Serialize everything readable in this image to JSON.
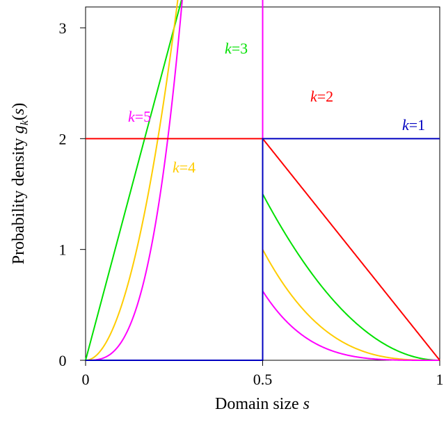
{
  "chart_data": {
    "type": "line",
    "xlabel": "Domain size",
    "xlabel_var": "s",
    "ylabel": "Probability density",
    "ylabel_fn": "g",
    "ylabel_sub": "k",
    "ylabel_open": "(",
    "ylabel_var": "s",
    "ylabel_close": ")",
    "xlim": [
      0,
      1
    ],
    "ylim": [
      0,
      3
    ],
    "x_ticks": [
      0,
      0.5,
      1
    ],
    "x_tick_labels": [
      "0",
      "0.5",
      "1"
    ],
    "y_ticks": [
      0,
      1,
      2,
      3
    ],
    "y_tick_labels": [
      "0",
      "1",
      "2",
      "3"
    ],
    "grid": false,
    "series": [
      {
        "name": "k=1",
        "k": 1,
        "label_var": "k",
        "label_eq": "=1",
        "color": "#0000c0"
      },
      {
        "name": "k=2",
        "k": 2,
        "label_var": "k",
        "label_eq": "=2",
        "color": "#ff0000"
      },
      {
        "name": "k=3",
        "k": 3,
        "label_var": "k",
        "label_eq": "=3",
        "color": "#00e000"
      },
      {
        "name": "k=4",
        "k": 4,
        "label_var": "k",
        "label_eq": "=4",
        "color": "#ffcc00"
      },
      {
        "name": "k=5",
        "k": 5,
        "label_var": "k",
        "label_eq": "=5",
        "color": "#ff00ff"
      }
    ],
    "formula": "g_k(s) = k(k-1)(2s)^(k-2) for s<0.5; g_k(s) = 2k(1-s)^(k-1) for s>=0.5 (k=1: 0 then 2)"
  }
}
